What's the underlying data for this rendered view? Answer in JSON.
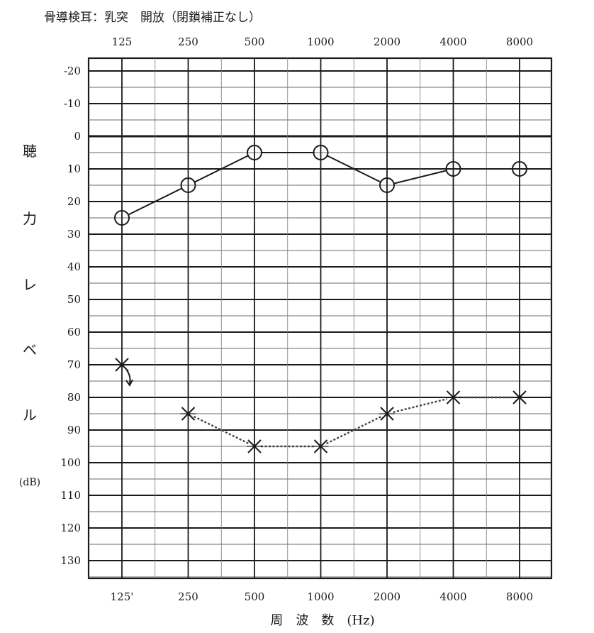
{
  "chart_data": {
    "type": "line",
    "title": "骨導検耳：乳突　開放（閉鎖補正なし）",
    "xlabel": "周　波　数　(Hz)",
    "ylabel": "聴力レベル",
    "ylabel_chars": [
      "聴",
      "力",
      "レ",
      "ベ",
      "ル"
    ],
    "ylabel_unit": "(dB)",
    "categories": [
      "125",
      "250",
      "500",
      "1000",
      "2000",
      "4000",
      "8000"
    ],
    "top_tick_labels": [
      "125",
      "250",
      "500",
      "1000",
      "2000",
      "4000",
      "8000"
    ],
    "bottom_tick_labels": [
      "125'",
      "250",
      "500",
      "1000",
      "2000",
      "4000",
      "8000"
    ],
    "y_ticks": [
      "-20",
      "-10",
      "0",
      "10",
      "20",
      "30",
      "40",
      "50",
      "60",
      "70",
      "80",
      "90",
      "100",
      "110",
      "120",
      "130"
    ],
    "ylim": [
      -20,
      130
    ],
    "y_inverted": true,
    "grid": true,
    "series": [
      {
        "marker": "circle",
        "line_style": "solid",
        "values": [
          25,
          15,
          5,
          5,
          15,
          10,
          10
        ]
      },
      {
        "marker": "x",
        "line_style": "dotted",
        "values": [
          70,
          85,
          95,
          95,
          85,
          80,
          80
        ],
        "connect_from_index": 1,
        "no_response_arrow_index": 0
      }
    ]
  }
}
